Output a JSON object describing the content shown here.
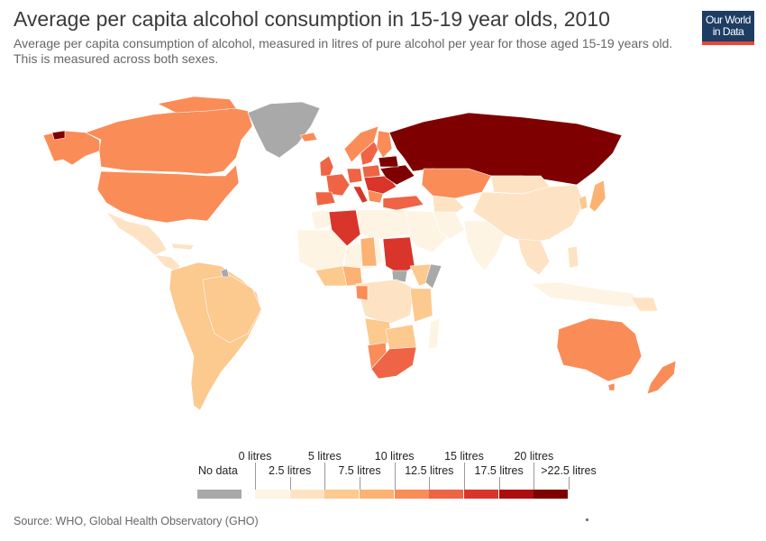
{
  "title": "Average per capita alcohol consumption in 15-19 year olds, 2010",
  "subtitle": "Average per capita consumption of alcohol, measured in litres of pure alcohol per year for those aged 15-19 years old. This is measured across both sexes.",
  "logo": {
    "line1": "Our World",
    "line2": "in Data",
    "bg": "#1d3d63",
    "accent": "#e8473a"
  },
  "legend": {
    "no_data_label": "No data",
    "no_data_color": "#a9a9a9",
    "upper_ticks": [
      "0 litres",
      "5 litres",
      "10 litres",
      "15 litres",
      "20 litres"
    ],
    "lower_ticks": [
      "2.5 litres",
      "7.5 litres",
      "12.5 litres",
      "17.5 litres",
      ">22.5 litres"
    ],
    "colors": [
      "#fef4e4",
      "#fde3c4",
      "#fcc98e",
      "#fbb272",
      "#fa8c58",
      "#ee6444",
      "#d9352a",
      "#ae0d10",
      "#7f0000"
    ]
  },
  "source": "Source: WHO, Global Health Observatory (GHO)"
}
